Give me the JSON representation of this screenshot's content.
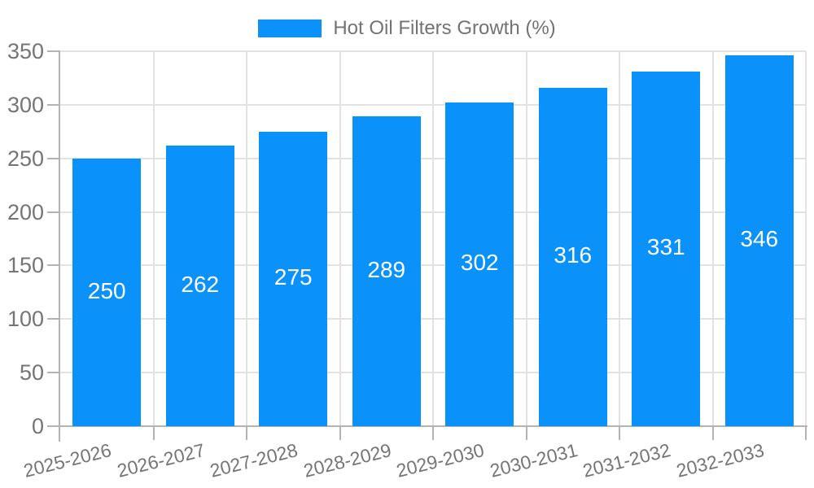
{
  "chart_data": {
    "type": "bar",
    "title": "Hot Oil Filters Growth (%)",
    "categories": [
      "2025-2026",
      "2026-2027",
      "2027-2028",
      "2028-2029",
      "2029-2030",
      "2030-2031",
      "2031-2032",
      "2032-2033"
    ],
    "values": [
      250,
      262,
      275,
      289,
      302,
      316,
      331,
      346
    ],
    "xlabel": "",
    "ylabel": "",
    "ylim": [
      0,
      350
    ],
    "yticks": [
      0,
      50,
      100,
      150,
      200,
      250,
      300,
      350
    ],
    "grid": true,
    "legend_position": "top",
    "value_labels_position": "inside-center",
    "bar_color": "#0A91FA",
    "value_label_color": "#FFFFFF",
    "grid_color": "#E2E2E2",
    "axis_color": "#B3B3B3",
    "tick_label_color": "#757575",
    "legend_text_color": "#737373",
    "background_color": "#FFFFFF"
  }
}
